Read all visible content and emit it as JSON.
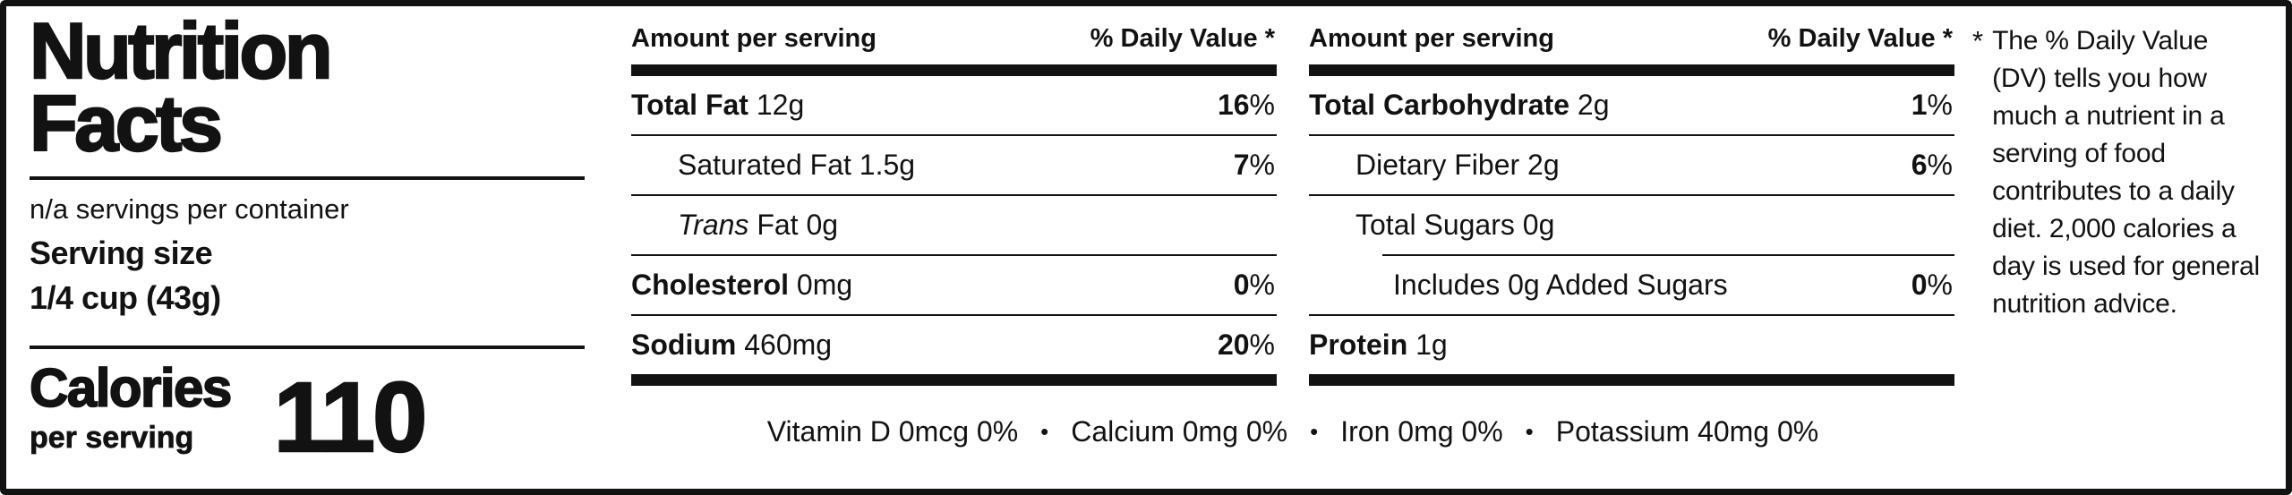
{
  "label": {
    "title_line1": "Nutrition",
    "title_line2": "Facts",
    "servings_per_container": "n/a servings per container",
    "serving_size_label": "Serving size",
    "serving_size_value": "1/4 cup (43g)",
    "calories_label": "Calories",
    "calories_sublabel": "per serving",
    "calories_value": "110"
  },
  "columns": [
    {
      "header_left": "Amount per serving",
      "header_right": "% Daily Value *",
      "rows": [
        {
          "b": "Total Fat",
          "i": "",
          "r": " 12g",
          "dv": "16",
          "pct": "%"
        },
        {
          "b": "",
          "i": "",
          "r": "Saturated Fat 1.5g",
          "dv": "7",
          "pct": "%"
        },
        {
          "b": "",
          "i": "Trans",
          "r": " Fat 0g",
          "dv": "",
          "pct": ""
        },
        {
          "b": "Cholesterol",
          "i": "",
          "r": " 0mg",
          "dv": "0",
          "pct": "%"
        },
        {
          "b": "Sodium",
          "i": "",
          "r": " 460mg",
          "dv": "20",
          "pct": "%"
        }
      ]
    },
    {
      "header_left": "Amount per serving",
      "header_right": "% Daily Value *",
      "rows": [
        {
          "b": "Total Carbohydrate",
          "i": "",
          "r": " 2g",
          "dv": "1",
          "pct": "%"
        },
        {
          "b": "",
          "i": "",
          "r": "Dietary Fiber 2g",
          "dv": "6",
          "pct": "%"
        },
        {
          "b": "",
          "i": "",
          "r": "Total Sugars 0g",
          "dv": "",
          "pct": ""
        },
        {
          "b": "",
          "i": "",
          "r": "Includes 0g Added Sugars",
          "dv": "0",
          "pct": "%"
        },
        {
          "b": "Protein",
          "i": "",
          "r": " 1g",
          "dv": "",
          "pct": ""
        }
      ]
    }
  ],
  "micronutrients": {
    "separator": "•",
    "items": [
      "Vitamin D 0mcg 0%",
      "Calcium 0mg 0%",
      "Iron 0mg 0%",
      "Potassium 40mg 0%"
    ]
  },
  "footnote": {
    "marker": "*",
    "text": "The % Daily Value (DV) tells you how much a nutrient in a serving of food contributes to a daily diet. 2,000 calories a day is used for general nutrition advice."
  }
}
